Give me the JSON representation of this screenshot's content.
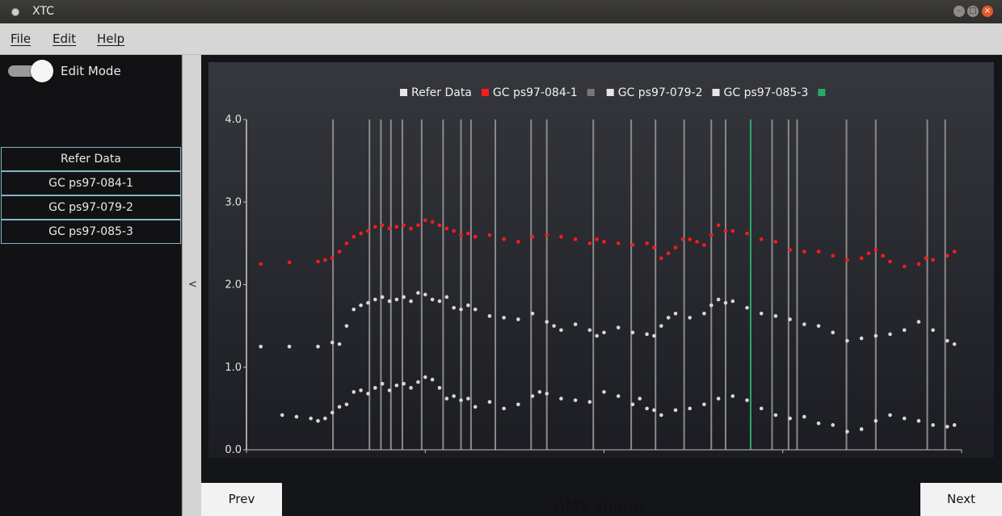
{
  "window": {
    "title": "XTC"
  },
  "menu": {
    "file": "File",
    "edit": "Edit",
    "help": "Help"
  },
  "sidebar": {
    "toggle_label": "Edit Mode",
    "toggle_on": true,
    "items": [
      {
        "label": "Refer Data"
      },
      {
        "label": "GC ps97-084-1"
      },
      {
        "label": "GC ps97-079-2"
      },
      {
        "label": "GC ps97-085-3"
      }
    ],
    "collapse_label": "<"
  },
  "nav": {
    "prev": "Prev",
    "next": "Next",
    "caption": "AMS shape"
  },
  "colors": {
    "red": "#ff1a1a",
    "grey_series": "#d8d8d8",
    "vline": "#8a8a8a",
    "marker": "#2ea86a",
    "legend_square_dark": "#777777"
  },
  "chart_data": {
    "type": "scatter",
    "xlim": [
      0,
      100
    ],
    "ylim": [
      0,
      4
    ],
    "x_ticks": [
      "0.0",
      "25.0",
      "50.0",
      "75.0",
      "100.0"
    ],
    "y_ticks": [
      "0.0",
      "1.0",
      "2.0",
      "3.0",
      "4.0"
    ],
    "legend": [
      {
        "label": "Refer Data",
        "color": "#e6e6e6"
      },
      {
        "label": "GC ps97-084-1",
        "color": "#ff1a1a"
      },
      {
        "label": "",
        "color": "#777777"
      },
      {
        "label": "GC ps97-079-2",
        "color": "#e6e6e6"
      },
      {
        "label": "GC ps97-085-3",
        "color": "#e6e6e6"
      },
      {
        "label": "",
        "color": "#2ea86a"
      }
    ],
    "vertical_lines_x": [
      0,
      12.1,
      17.2,
      18.8,
      20.2,
      21.8,
      24.5,
      27.5,
      30.0,
      31.4,
      34.8,
      39.8,
      42.0,
      48.5,
      53.8,
      57.2,
      61.2,
      65.0,
      67.0,
      73.5,
      75.8,
      77.0,
      83.9,
      88.0,
      95.2,
      97.7
    ],
    "highlight_line_x": 70.5,
    "series": [
      {
        "name": "GC ps97-084-1",
        "color": "#ff1a1a",
        "x": [
          2,
          6,
          10,
          11,
          12,
          13,
          14,
          15,
          16,
          17,
          18,
          19,
          20,
          21,
          22,
          23,
          24,
          25,
          26,
          27,
          28,
          29,
          30,
          31,
          32,
          34,
          36,
          38,
          40,
          42,
          44,
          46,
          48,
          49,
          50,
          52,
          54,
          56,
          57,
          58,
          59,
          60,
          61,
          62,
          63,
          64,
          65,
          66,
          67,
          68,
          70,
          72,
          74,
          76,
          78,
          80,
          82,
          84,
          86,
          87,
          88,
          89,
          90,
          92,
          94,
          95,
          96,
          98,
          99
        ],
        "y": [
          2.25,
          2.27,
          2.28,
          2.3,
          2.32,
          2.4,
          2.5,
          2.58,
          2.62,
          2.65,
          2.7,
          2.72,
          2.68,
          2.7,
          2.72,
          2.68,
          2.72,
          2.78,
          2.76,
          2.72,
          2.68,
          2.65,
          2.6,
          2.62,
          2.58,
          2.6,
          2.55,
          2.52,
          2.58,
          2.6,
          2.58,
          2.55,
          2.5,
          2.55,
          2.52,
          2.5,
          2.48,
          2.5,
          2.45,
          2.32,
          2.38,
          2.45,
          2.55,
          2.55,
          2.52,
          2.48,
          2.6,
          2.72,
          2.65,
          2.65,
          2.62,
          2.55,
          2.52,
          2.42,
          2.4,
          2.4,
          2.35,
          2.3,
          2.32,
          2.38,
          2.42,
          2.35,
          2.28,
          2.22,
          2.25,
          2.32,
          2.3,
          2.35,
          2.4
        ]
      },
      {
        "name": "GC ps97-079-2",
        "color": "#d8d8d8",
        "x": [
          2,
          6,
          10,
          12,
          13,
          14,
          15,
          16,
          17,
          18,
          19,
          20,
          21,
          22,
          23,
          24,
          25,
          26,
          27,
          28,
          29,
          30,
          31,
          32,
          34,
          36,
          38,
          40,
          42,
          43,
          44,
          46,
          48,
          49,
          50,
          52,
          54,
          56,
          57,
          58,
          59,
          60,
          62,
          64,
          65,
          66,
          67,
          68,
          70,
          72,
          74,
          76,
          78,
          80,
          82,
          84,
          86,
          88,
          90,
          92,
          94,
          96,
          98,
          99
        ],
        "y": [
          1.25,
          1.25,
          1.25,
          1.3,
          1.28,
          1.5,
          1.7,
          1.75,
          1.78,
          1.82,
          1.85,
          1.8,
          1.82,
          1.85,
          1.8,
          1.9,
          1.88,
          1.82,
          1.8,
          1.85,
          1.72,
          1.7,
          1.75,
          1.7,
          1.62,
          1.6,
          1.58,
          1.65,
          1.55,
          1.5,
          1.45,
          1.52,
          1.45,
          1.38,
          1.42,
          1.48,
          1.42,
          1.4,
          1.38,
          1.5,
          1.6,
          1.65,
          1.6,
          1.65,
          1.75,
          1.82,
          1.78,
          1.8,
          1.72,
          1.65,
          1.62,
          1.58,
          1.52,
          1.5,
          1.42,
          1.32,
          1.35,
          1.38,
          1.4,
          1.45,
          1.55,
          1.45,
          1.32,
          1.28
        ]
      },
      {
        "name": "GC ps97-085-3",
        "color": "#d8d8d8",
        "x": [
          5,
          7,
          9,
          10,
          11,
          12,
          13,
          14,
          15,
          16,
          17,
          18,
          19,
          20,
          21,
          22,
          23,
          24,
          25,
          26,
          27,
          28,
          29,
          30,
          31,
          32,
          34,
          36,
          38,
          40,
          41,
          42,
          44,
          46,
          48,
          50,
          52,
          54,
          55,
          56,
          57,
          58,
          60,
          62,
          64,
          66,
          68,
          70,
          72,
          74,
          76,
          78,
          80,
          82,
          84,
          86,
          88,
          90,
          92,
          94,
          96,
          98,
          99
        ],
        "y": [
          0.42,
          0.4,
          0.38,
          0.35,
          0.38,
          0.45,
          0.52,
          0.55,
          0.7,
          0.72,
          0.68,
          0.75,
          0.8,
          0.72,
          0.78,
          0.8,
          0.75,
          0.82,
          0.88,
          0.85,
          0.75,
          0.62,
          0.65,
          0.6,
          0.62,
          0.52,
          0.58,
          0.5,
          0.55,
          0.65,
          0.7,
          0.68,
          0.62,
          0.6,
          0.58,
          0.7,
          0.65,
          0.55,
          0.62,
          0.5,
          0.48,
          0.42,
          0.48,
          0.5,
          0.55,
          0.62,
          0.65,
          0.6,
          0.5,
          0.42,
          0.38,
          0.4,
          0.32,
          0.3,
          0.22,
          0.25,
          0.35,
          0.42,
          0.38,
          0.35,
          0.3,
          0.28,
          0.3
        ]
      }
    ]
  }
}
